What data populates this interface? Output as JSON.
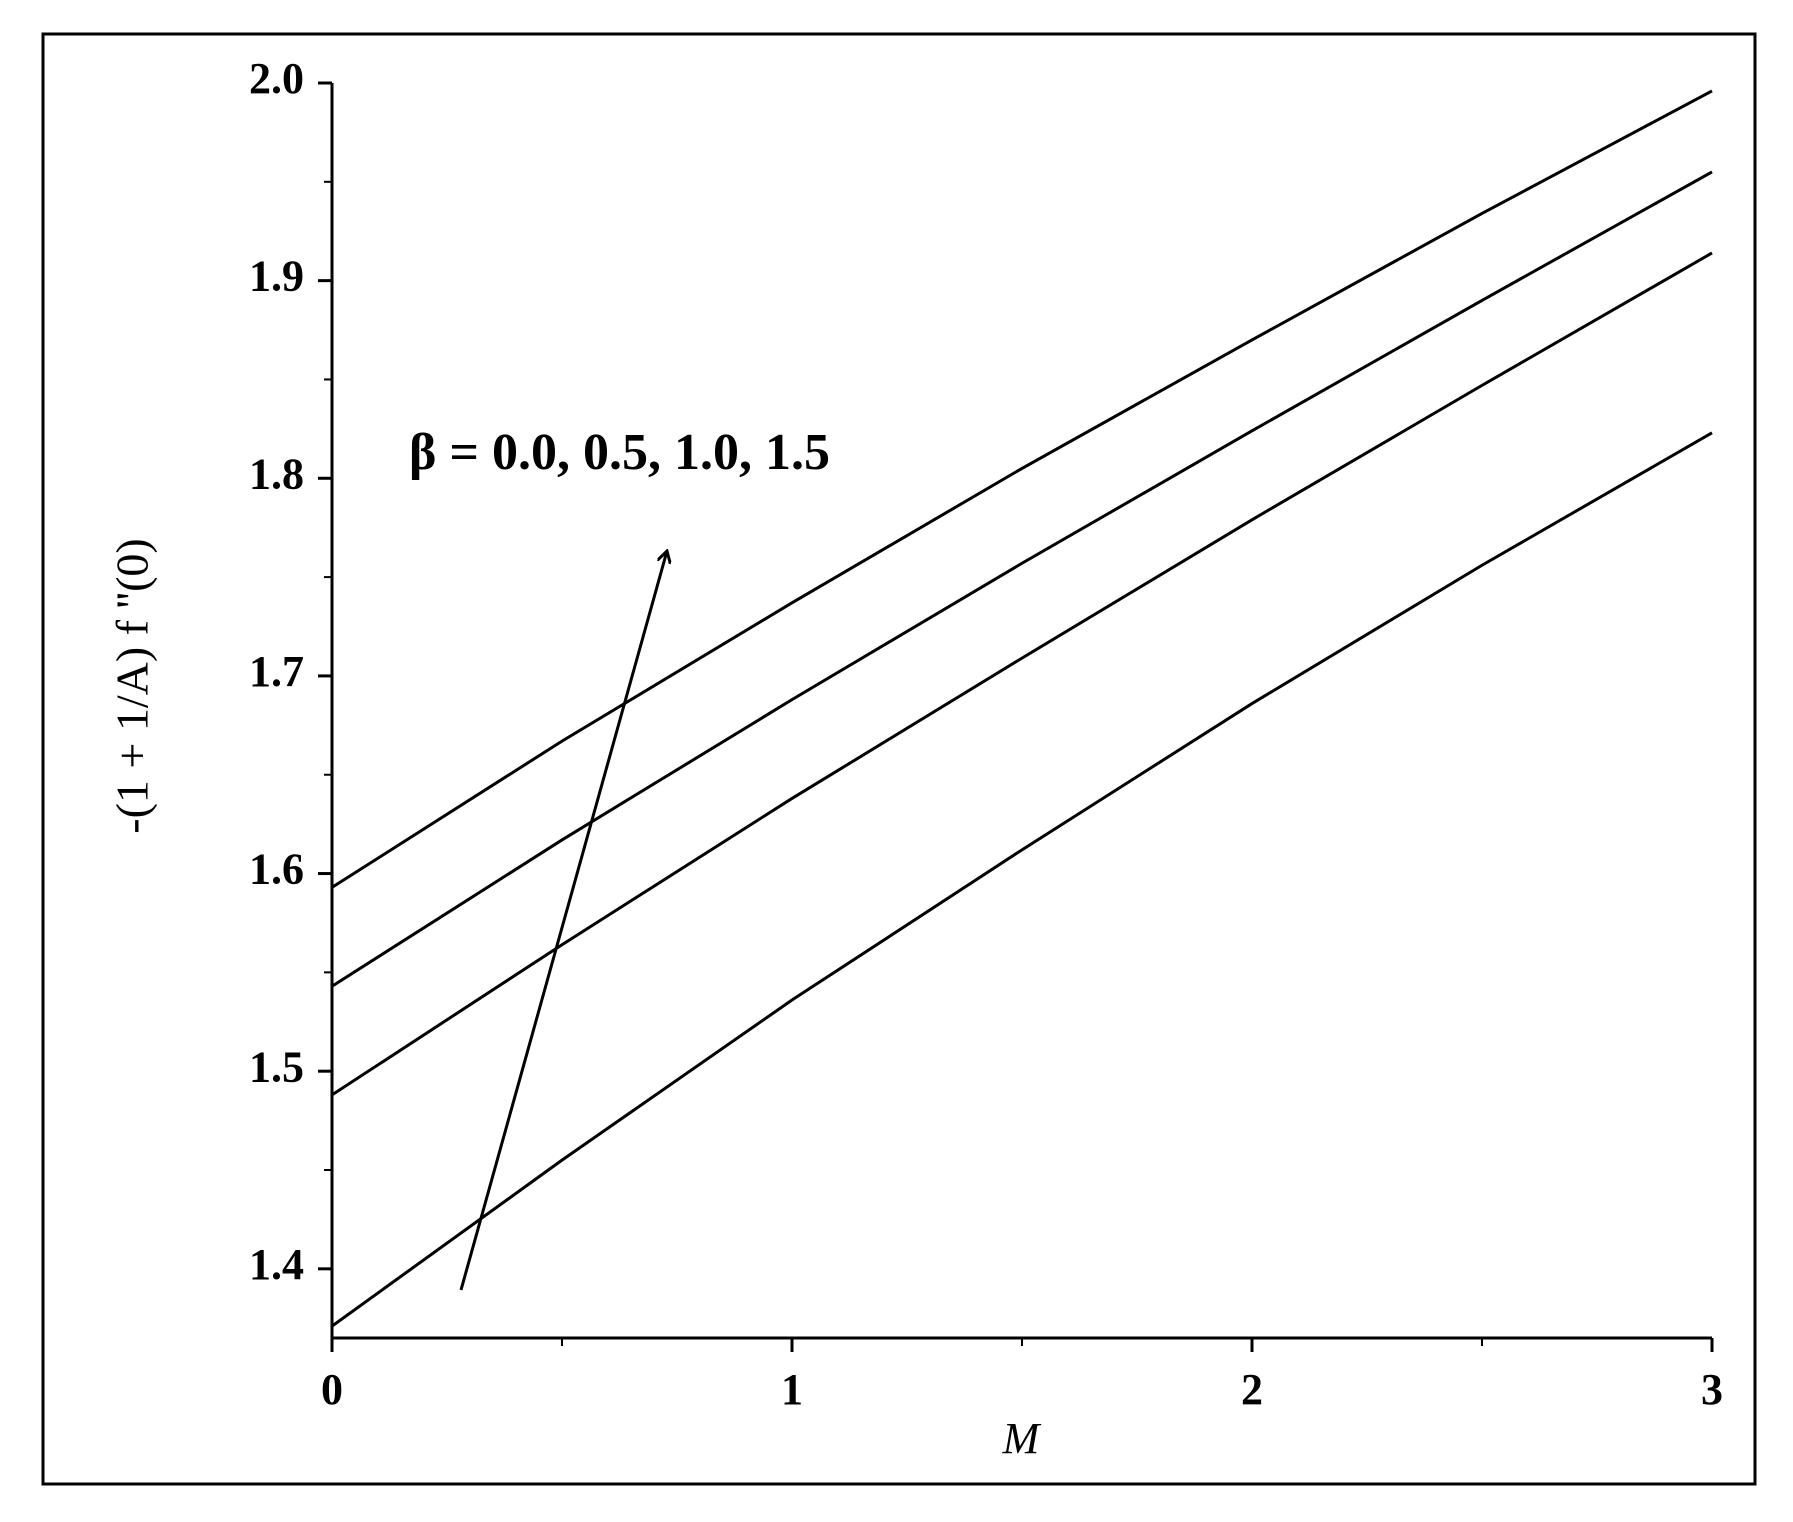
{
  "chart_data": {
    "type": "line",
    "x": [
      0,
      0.5,
      1,
      1.5,
      2,
      2.5,
      3
    ],
    "series": [
      {
        "color": "#000000",
        "values": [
          1.593,
          1.667,
          1.737,
          1.805,
          1.87,
          1.934,
          1.996
        ]
      },
      {
        "color": "#000000",
        "values": [
          1.543,
          1.617,
          1.688,
          1.757,
          1.824,
          1.89,
          1.955
        ]
      },
      {
        "color": "#000000",
        "values": [
          1.488,
          1.564,
          1.638,
          1.709,
          1.779,
          1.847,
          1.914
        ]
      },
      {
        "color": "#000000",
        "values": [
          1.371,
          1.455,
          1.536,
          1.612,
          1.686,
          1.756,
          1.823
        ]
      }
    ],
    "xlim": [
      0,
      3
    ],
    "ylim": [
      1.365,
      2.0
    ],
    "xticks": [
      0,
      1,
      2,
      3
    ],
    "yticks": [
      1.4,
      1.5,
      1.6,
      1.7,
      1.8,
      1.9,
      {
        "value": 2.0,
        "label": "2.0"
      }
    ],
    "xminorticks": [
      0.5,
      1.5,
      2.5
    ],
    "yminorticks": [
      1.45,
      1.55,
      1.65,
      1.75,
      1.85,
      1.95
    ],
    "xlabel": "M",
    "ylabel": "-(1 + 1/A) f ''(0)",
    "annotation": "β = 0.0, 0.5, 1.0, 1.5"
  }
}
